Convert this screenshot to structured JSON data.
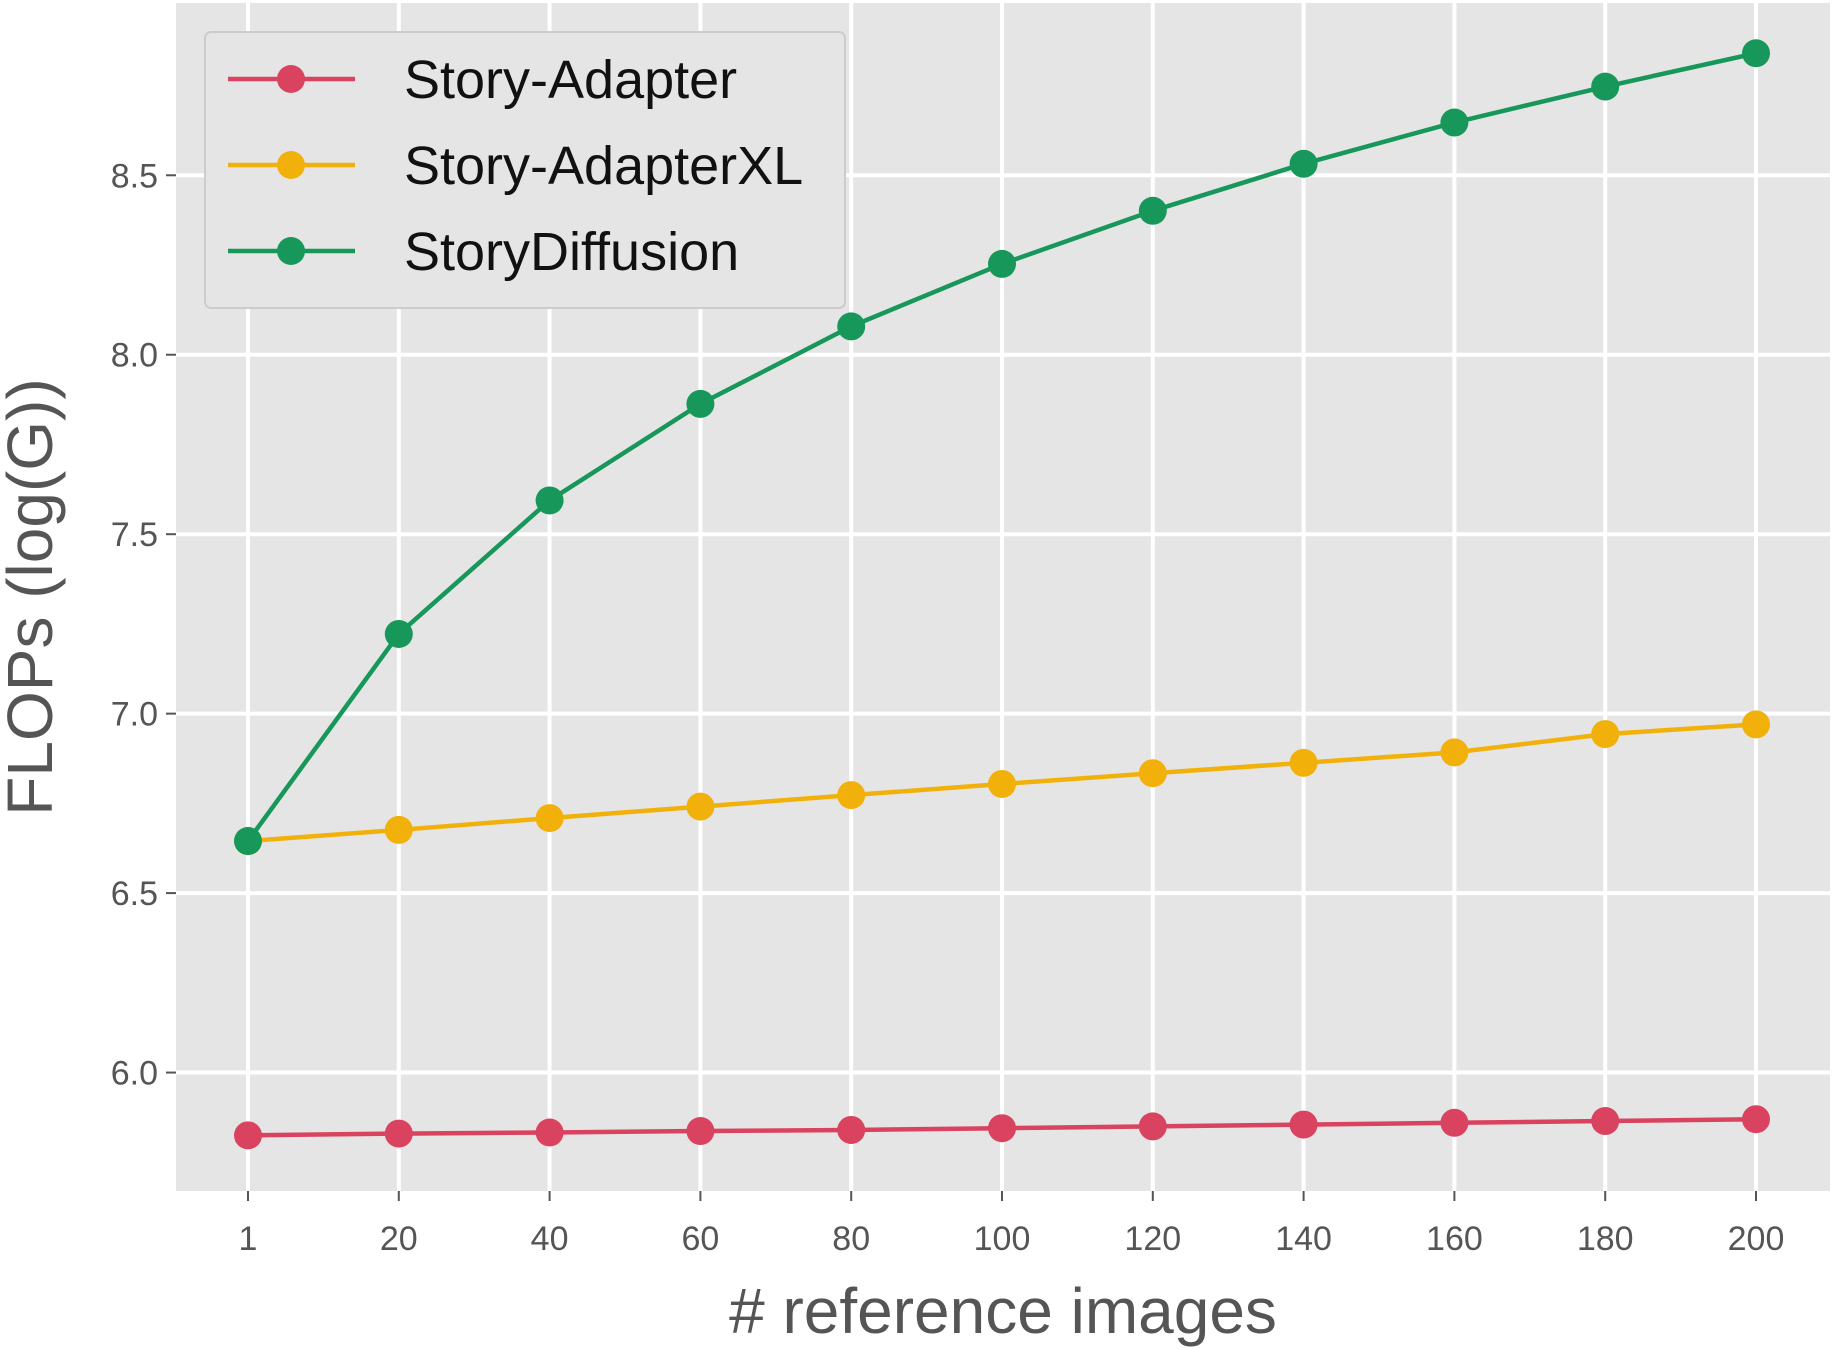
{
  "chart_data": {
    "type": "line",
    "title": "",
    "xlabel": "# reference images",
    "ylabel": "FLOPs (log(G))",
    "categories": [
      "1",
      "20",
      "40",
      "60",
      "80",
      "100",
      "120",
      "140",
      "160",
      "180",
      "200"
    ],
    "yticks": [
      "6.0",
      "6.5",
      "7.0",
      "7.5",
      "8.0",
      "8.5"
    ],
    "ylim": [
      5.67,
      8.98
    ],
    "grid": true,
    "legend_position": "top-left",
    "series": [
      {
        "name": "Story-Adapter",
        "color": "#d9435f",
        "values": [
          5.825,
          5.83,
          5.833,
          5.837,
          5.84,
          5.845,
          5.85,
          5.855,
          5.86,
          5.865,
          5.87
        ]
      },
      {
        "name": "Story-AdapterXL",
        "color": "#f2b10a",
        "values": [
          6.645,
          6.676,
          6.709,
          6.741,
          6.773,
          6.804,
          6.834,
          6.863,
          6.892,
          6.943,
          6.97
        ]
      },
      {
        "name": "StoryDiffusion",
        "color": "#17985a",
        "values": [
          6.645,
          7.222,
          7.594,
          7.863,
          8.079,
          8.253,
          8.401,
          8.532,
          8.647,
          8.747,
          8.84
        ]
      }
    ]
  }
}
